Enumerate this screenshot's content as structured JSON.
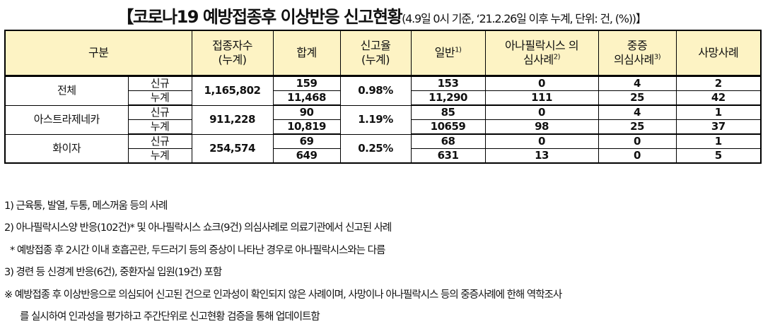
{
  "title": {
    "main": "【코로나19 예방접종후 이상반응 신고현황",
    "sub": "(4.9일 0시 기준, ‘21.2.26일 이후 누계, 단위: 건, (%))】"
  },
  "headers": {
    "category": "구분",
    "vaccinated": "접종자수\n(누계)",
    "total": "합계",
    "rate": "신고율\n(누계)",
    "general": "일반",
    "general_sup": "1)",
    "anaphylaxis": "아나필락시스 의\n심사례",
    "anaphylaxis_sup": "2)",
    "severe": "중증\n의심사례",
    "severe_sup": "3)",
    "death": "사망사례"
  },
  "groups": [
    {
      "name": "전체",
      "vaccinated": "1,165,802",
      "rate": "0.98%",
      "rows": [
        {
          "label": "신규",
          "total": "159",
          "general": "153",
          "anaphylaxis": "0",
          "severe": "4",
          "death": "2"
        },
        {
          "label": "누계",
          "total": "11,468",
          "general": "11,290",
          "anaphylaxis": "111",
          "severe": "25",
          "death": "42"
        }
      ]
    },
    {
      "name": "아스트라제네카",
      "vaccinated": "911,228",
      "rate": "1.19%",
      "rows": [
        {
          "label": "신규",
          "total": "90",
          "general": "85",
          "anaphylaxis": "0",
          "severe": "4",
          "death": "1"
        },
        {
          "label": "누계",
          "total": "10,819",
          "general": "10659",
          "anaphylaxis": "98",
          "severe": "25",
          "death": "37"
        }
      ]
    },
    {
      "name": "화이자",
      "vaccinated": "254,574",
      "rate": "0.25%",
      "rows": [
        {
          "label": "신규",
          "total": "69",
          "general": "68",
          "anaphylaxis": "0",
          "severe": "0",
          "death": "1"
        },
        {
          "label": "누계",
          "total": "649",
          "general": "631",
          "anaphylaxis": "13",
          "severe": "0",
          "death": "5"
        }
      ]
    }
  ],
  "notes": [
    "1) 근육통, 발열, 두통, 메스꺼움 등의 사례",
    "2) 아나필락시스양 반응(102건)* 및 아나필락시스 쇼크(9건) 의심사례로 의료기관에서 신고된 사례",
    "* 예방접종 후 2시간 이내 호흡곤란, 두드러기 등의 증상이 나타난 경우로 아나필락시스와는 다름",
    "3) 경련 등 신경계 반응(6건), 중환자실 입원(19건) 포함",
    "※ 예방접종 후 이상반응으로 의심되어 신고된 건으로 인과성이 확인되지 않은 사례이며, 사망이나 아나필락시스 등의 중증사례에 한해 역학조사",
    "를 실시하여 인과성을 평가하고 주간단위로 신고현황 검증을 통해 업데이트함"
  ]
}
